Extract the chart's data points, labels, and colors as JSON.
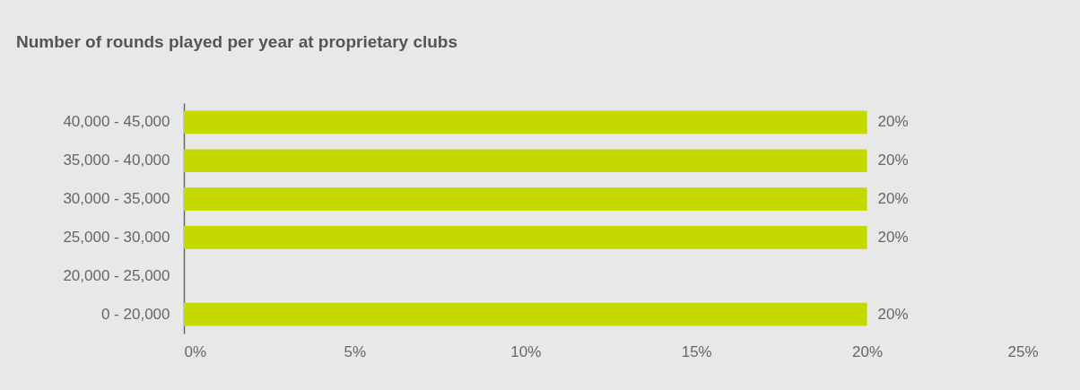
{
  "chart_data": {
    "type": "bar",
    "orientation": "horizontal",
    "title": "Number of rounds played per year at proprietary clubs",
    "categories": [
      "40,000 - 45,000",
      "35,000 - 40,000",
      "30,000 - 35,000",
      "25,000 - 30,000",
      "20,000 - 25,000",
      "0 - 20,000"
    ],
    "values": [
      20,
      20,
      20,
      20,
      0,
      20
    ],
    "value_labels": [
      "20%",
      "20%",
      "20%",
      "20%",
      null,
      "20%"
    ],
    "color": "#c5d900",
    "xlim": [
      0,
      25
    ],
    "xticks": [
      {
        "value": 0,
        "label": "0%"
      },
      {
        "value": 5,
        "label": "5%"
      },
      {
        "value": 10,
        "label": "10%"
      },
      {
        "value": 15,
        "label": "15%"
      },
      {
        "value": 20,
        "label": "20%"
      },
      {
        "value": 25,
        "label": "25%"
      }
    ],
    "grid": false
  }
}
